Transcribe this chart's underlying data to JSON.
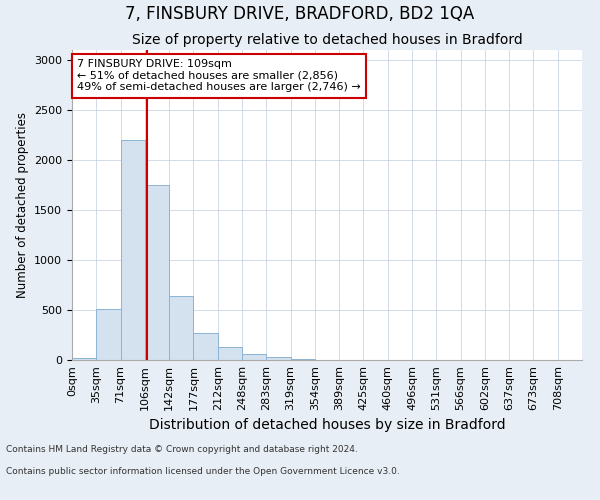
{
  "title1": "7, FINSBURY DRIVE, BRADFORD, BD2 1QA",
  "title2": "Size of property relative to detached houses in Bradford",
  "xlabel": "Distribution of detached houses by size in Bradford",
  "ylabel": "Number of detached properties",
  "bar_labels": [
    "0sqm",
    "35sqm",
    "71sqm",
    "106sqm",
    "142sqm",
    "177sqm",
    "212sqm",
    "248sqm",
    "283sqm",
    "319sqm",
    "354sqm",
    "389sqm",
    "425sqm",
    "460sqm",
    "496sqm",
    "531sqm",
    "566sqm",
    "602sqm",
    "637sqm",
    "673sqm",
    "708sqm"
  ],
  "bar_values": [
    25,
    515,
    2200,
    1750,
    640,
    270,
    130,
    65,
    30,
    10,
    5,
    3,
    2,
    1,
    1,
    0,
    0,
    0,
    0,
    0,
    0
  ],
  "bar_color": "#d4e2f0",
  "bar_edge_color": "#8cb4d2",
  "vline_color": "#cc0000",
  "annotation_text": "7 FINSBURY DRIVE: 109sqm\n← 51% of detached houses are smaller (2,856)\n49% of semi-detached houses are larger (2,746) →",
  "annotation_box_color": "white",
  "annotation_box_edge": "#cc0000",
  "ylim": [
    0,
    3100
  ],
  "yticks": [
    0,
    500,
    1000,
    1500,
    2000,
    2500,
    3000
  ],
  "background_color": "#e8eef5",
  "plot_background": "white",
  "footer1": "Contains HM Land Registry data © Crown copyright and database right 2024.",
  "footer2": "Contains public sector information licensed under the Open Government Licence v3.0.",
  "title1_fontsize": 12,
  "title2_fontsize": 10,
  "xlabel_fontsize": 10,
  "ylabel_fontsize": 8.5,
  "tick_fontsize": 8,
  "annotation_fontsize": 8,
  "footer_fontsize": 6.5
}
